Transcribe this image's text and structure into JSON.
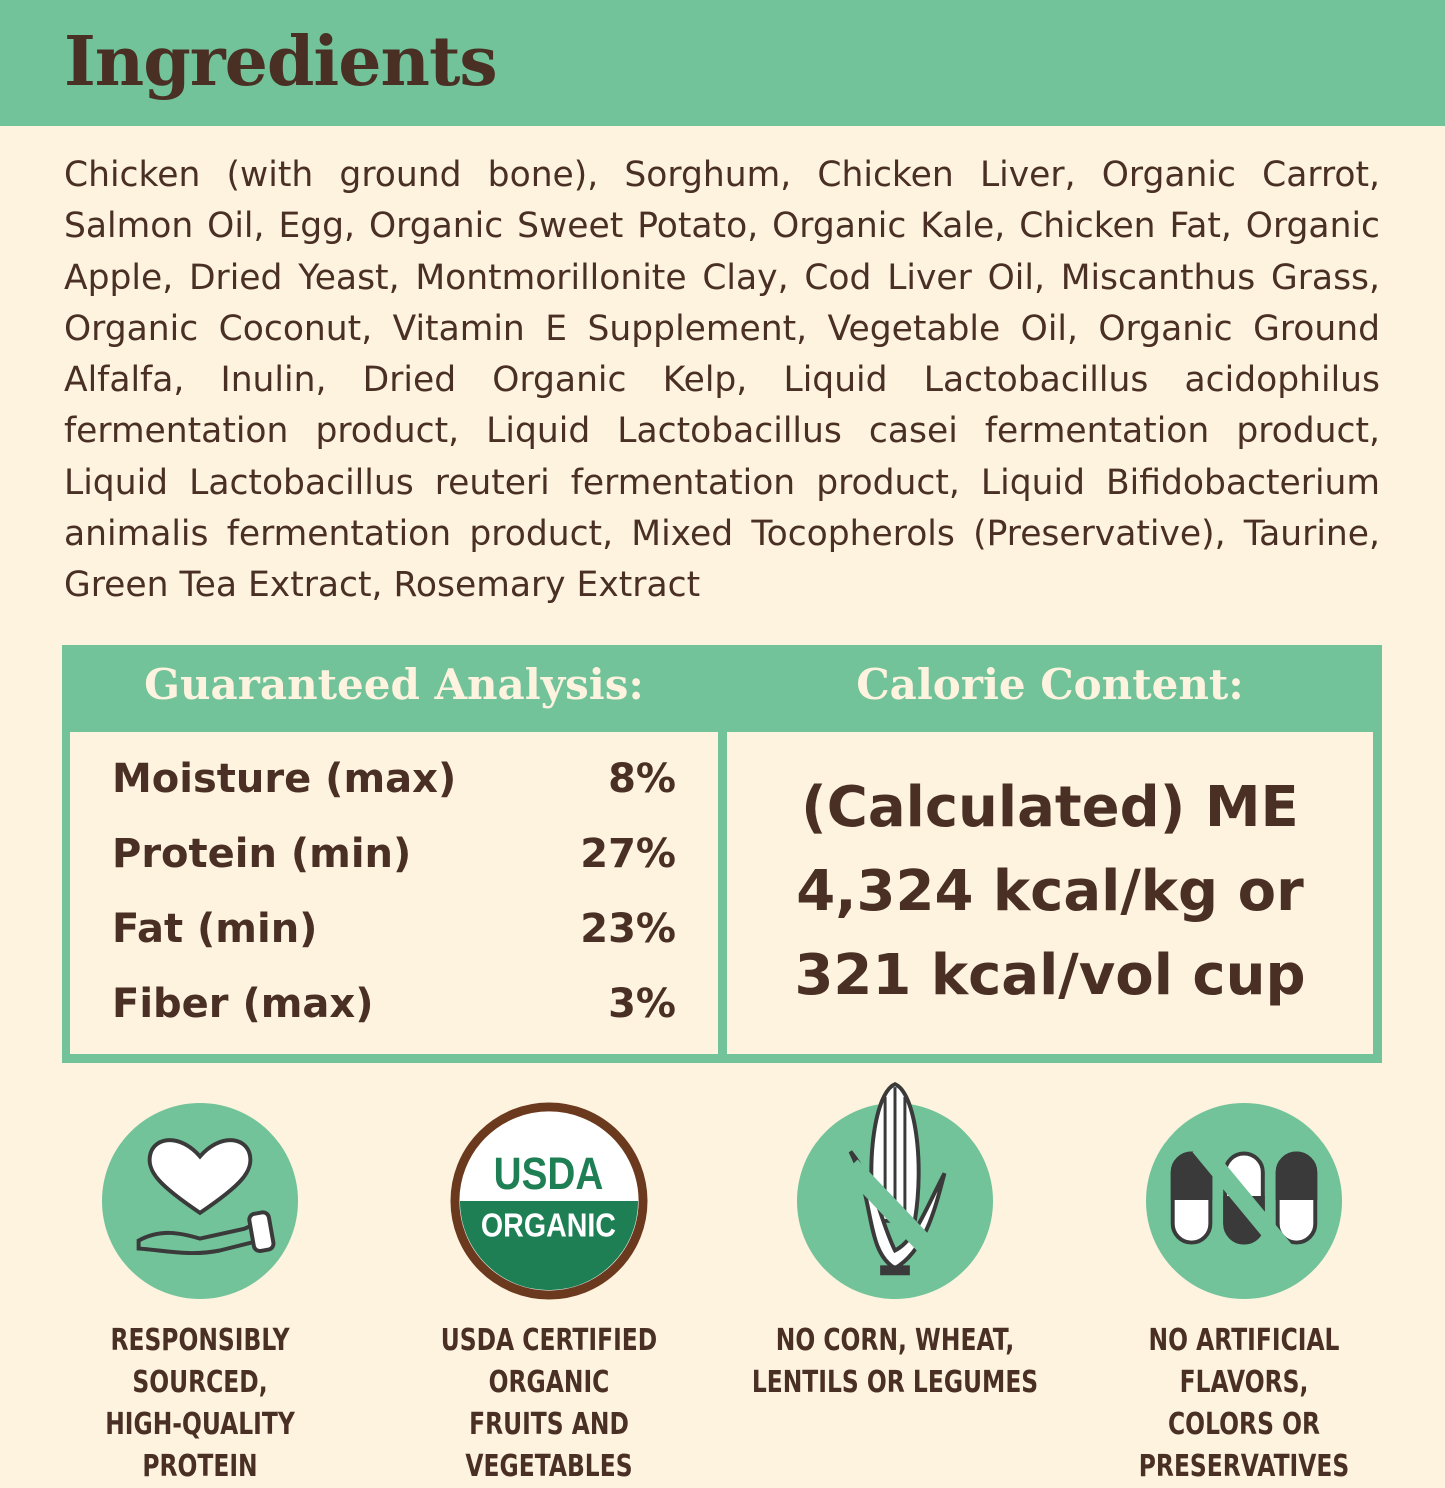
{
  "header": {
    "title": "Ingredients"
  },
  "ingredients": "Chicken (with ground bone), Sorghum, Chicken Liver, Organic Carrot, Salmon Oil, Egg, Organic Sweet Potato, Organic Kale, Chicken Fat, Organic Apple, Dried Yeast, Montmorillonite Clay, Cod Liver Oil, Miscanthus Grass, Organic Coconut, Vitamin E Supplement, Vegetable Oil, Organic Ground Alfalfa, Inulin, Dried Organic Kelp, Liquid Lactobacillus acidophilus fermentation product, Liquid Lactobacillus casei fermentation product, Liquid Lactobacillus reuteri fermentation product, Liquid Bifidobacterium animalis fermentation product, Mixed Tocopherols (Preservative), Taurine, Green Tea Extract, Rosemary Extract",
  "analysis": {
    "title": "Guaranteed Analysis:",
    "rows": [
      {
        "label": "Moisture (max)",
        "value": "8%"
      },
      {
        "label": "Protein (min)",
        "value": "27%"
      },
      {
        "label": "Fat (min)",
        "value": "23%"
      },
      {
        "label": "Fiber (max)",
        "value": "3%"
      }
    ]
  },
  "calorie": {
    "title": "Calorie Content:",
    "lines": [
      "(Calculated) ME",
      "4,324 kcal/kg or",
      "321 kcal/vol cup"
    ]
  },
  "badges": [
    {
      "icon": "heart-hand-icon",
      "line1": "RESPONSIBLY SOURCED,",
      "line2": "HIGH-QUALITY PROTEIN"
    },
    {
      "icon": "usda-organic-seal-icon",
      "seal_top": "USDA",
      "seal_bottom": "ORGANIC",
      "line1": "USDA CERTIFIED ORGANIC",
      "line2": "FRUITS AND VEGETABLES"
    },
    {
      "icon": "no-corn-icon",
      "line1": "NO CORN, WHEAT,",
      "line2": "LENTILS OR LEGUMES"
    },
    {
      "icon": "no-capsules-icon",
      "line1": "NO ARTIFICIAL FLAVORS,",
      "line2": "COLORS OR PRESERVATIVES"
    }
  ],
  "colors": {
    "green": "#72c39a",
    "cream": "#fdf3df",
    "brown": "#4a2f24",
    "usda_green": "#1e7f55"
  }
}
